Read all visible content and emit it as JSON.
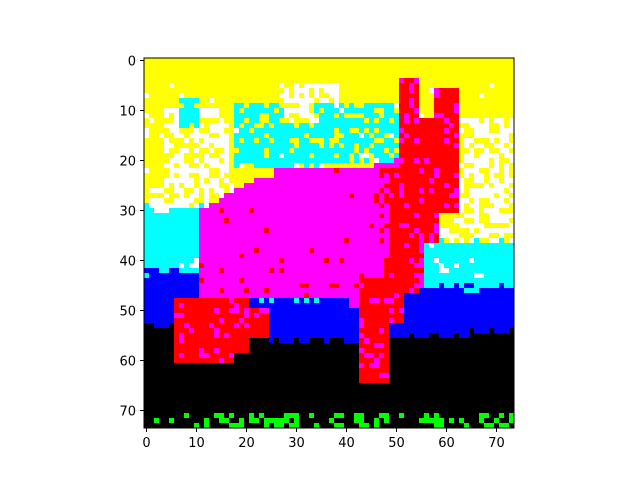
{
  "chart_data": {
    "type": "heatmap",
    "title": "",
    "xlabel": "",
    "ylabel": "",
    "xlim": [
      -0.5,
      73.5
    ],
    "ylim": [
      73.5,
      -0.5
    ],
    "origin": "upper",
    "grid": false,
    "x_ticks": [
      {
        "value": 0,
        "label": "0"
      },
      {
        "value": 10,
        "label": "10"
      },
      {
        "value": 20,
        "label": "20"
      },
      {
        "value": 30,
        "label": "30"
      },
      {
        "value": 40,
        "label": "40"
      },
      {
        "value": 50,
        "label": "50"
      },
      {
        "value": 60,
        "label": "60"
      },
      {
        "value": 70,
        "label": "70"
      }
    ],
    "y_ticks": [
      {
        "value": 0,
        "label": "0"
      },
      {
        "value": 10,
        "label": "10"
      },
      {
        "value": 20,
        "label": "20"
      },
      {
        "value": 30,
        "label": "30"
      },
      {
        "value": 40,
        "label": "40"
      },
      {
        "value": 50,
        "label": "50"
      },
      {
        "value": 60,
        "label": "60"
      },
      {
        "value": 70,
        "label": "70"
      }
    ],
    "colors": {
      "black": "#000000",
      "red": "#ff0000",
      "green": "#00ff00",
      "blue": "#0000ff",
      "yellow": "#ffff00",
      "magenta": "#ff00ff",
      "cyan": "#00ffff",
      "white": "#ffffff"
    },
    "regions_description_in_data_units": [
      {
        "label": "yellow-sky",
        "color": "yellow"
      },
      {
        "label": "cyan-band",
        "color": "cyan"
      },
      {
        "label": "blue-band",
        "color": "blue"
      },
      {
        "label": "black-ground",
        "color": "black"
      },
      {
        "label": "green-specks",
        "color": "green"
      },
      {
        "label": "magenta-body",
        "color": "magenta"
      },
      {
        "label": "red-legs-ears",
        "color": "red"
      }
    ]
  }
}
